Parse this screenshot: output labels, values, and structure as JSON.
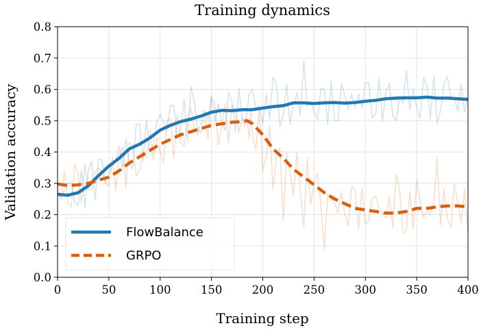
{
  "chart_data": {
    "type": "line",
    "title": "Training dynamics",
    "xlabel": "Training step",
    "ylabel": "Validation accuracy",
    "xlim": [
      0,
      400
    ],
    "ylim": [
      0.0,
      0.8
    ],
    "xticks": [
      "0",
      "50",
      "100",
      "150",
      "200",
      "250",
      "300",
      "350",
      "400"
    ],
    "yticks": [
      "0.0",
      "0.1",
      "0.2",
      "0.3",
      "0.4",
      "0.5",
      "0.6",
      "0.7",
      "0.8"
    ],
    "grid": true,
    "legend": {
      "placement": "lower-left"
    },
    "series": [
      {
        "name": "FlowBalance",
        "color": "#1f77b4",
        "style": "solid",
        "x": [
          0,
          10,
          20,
          30,
          40,
          50,
          60,
          70,
          80,
          90,
          100,
          110,
          120,
          130,
          140,
          150,
          160,
          170,
          180,
          190,
          200,
          210,
          220,
          230,
          240,
          250,
          260,
          270,
          280,
          290,
          300,
          310,
          320,
          330,
          340,
          350,
          360,
          370,
          380,
          390,
          400
        ],
        "y": [
          0.265,
          0.262,
          0.27,
          0.292,
          0.325,
          0.355,
          0.38,
          0.41,
          0.425,
          0.445,
          0.47,
          0.485,
          0.497,
          0.505,
          0.515,
          0.527,
          0.533,
          0.532,
          0.535,
          0.535,
          0.54,
          0.545,
          0.548,
          0.557,
          0.557,
          0.555,
          0.557,
          0.558,
          0.556,
          0.558,
          0.562,
          0.565,
          0.57,
          0.572,
          0.573,
          0.573,
          0.575,
          0.572,
          0.572,
          0.57,
          0.568
        ],
        "noisy_y": [
          0.26,
          0.3,
          0.23,
          0.34,
          0.38,
          0.33,
          0.42,
          0.36,
          0.49,
          0.4,
          0.52,
          0.55,
          0.47,
          0.61,
          0.5,
          0.58,
          0.49,
          0.56,
          0.51,
          0.6,
          0.49,
          0.64,
          0.52,
          0.55,
          0.69,
          0.53,
          0.6,
          0.5,
          0.58,
          0.54,
          0.62,
          0.52,
          0.59,
          0.5,
          0.66,
          0.54,
          0.61,
          0.49,
          0.64,
          0.53,
          0.58
        ]
      },
      {
        "name": "GRPO",
        "color": "#d95f0e",
        "style": "dashed",
        "x": [
          0,
          10,
          20,
          30,
          40,
          50,
          60,
          70,
          80,
          90,
          100,
          110,
          120,
          130,
          140,
          150,
          160,
          170,
          180,
          185,
          190,
          200,
          210,
          220,
          230,
          240,
          250,
          260,
          270,
          280,
          290,
          300,
          310,
          320,
          330,
          340,
          350,
          360,
          370,
          380,
          390,
          400
        ],
        "y": [
          0.298,
          0.293,
          0.295,
          0.3,
          0.31,
          0.32,
          0.34,
          0.365,
          0.385,
          0.405,
          0.425,
          0.44,
          0.455,
          0.465,
          0.475,
          0.485,
          0.49,
          0.495,
          0.497,
          0.5,
          0.49,
          0.455,
          0.41,
          0.38,
          0.345,
          0.32,
          0.295,
          0.27,
          0.25,
          0.235,
          0.22,
          0.215,
          0.21,
          0.205,
          0.205,
          0.21,
          0.22,
          0.22,
          0.225,
          0.228,
          0.228,
          0.225
        ],
        "noisy_y": [
          0.3,
          0.24,
          0.33,
          0.28,
          0.35,
          0.29,
          0.38,
          0.43,
          0.34,
          0.47,
          0.4,
          0.51,
          0.43,
          0.54,
          0.46,
          0.57,
          0.48,
          0.55,
          0.51,
          0.5,
          0.45,
          0.34,
          0.28,
          0.18,
          0.26,
          0.16,
          0.3,
          0.09,
          0.24,
          0.2,
          0.28,
          0.17,
          0.26,
          0.19,
          0.33,
          0.15,
          0.31,
          0.21,
          0.38,
          0.19,
          0.24,
          0.14
        ]
      }
    ]
  }
}
